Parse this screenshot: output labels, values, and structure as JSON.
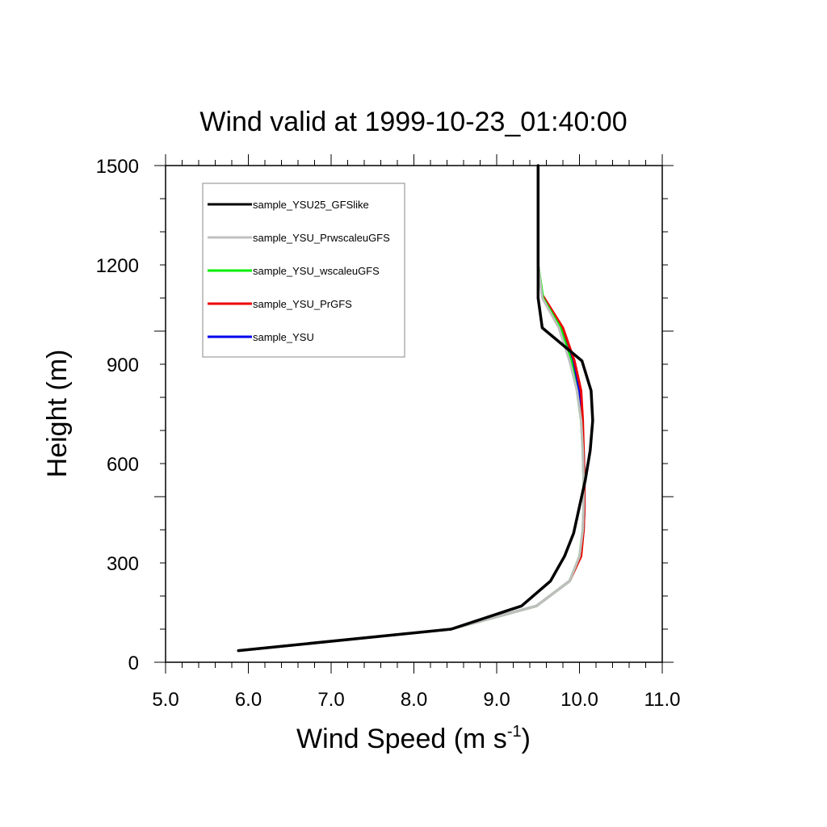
{
  "chart_data": {
    "type": "line",
    "title": "Wind valid at 1999-10-23_01:40:00",
    "xlabel_main": "Wind Speed (m s",
    "xlabel_sup": "-1",
    "xlabel_close": ")",
    "ylabel": "Height (m)",
    "xlim": [
      5.0,
      11.0
    ],
    "ylim": [
      0,
      1500
    ],
    "xticks": [
      5.0,
      6.0,
      7.0,
      8.0,
      9.0,
      10.0,
      11.0
    ],
    "xtick_labels": [
      "5.0",
      "6.0",
      "7.0",
      "8.0",
      "9.0",
      "10.0",
      "11.0"
    ],
    "yticks": [
      0,
      300,
      600,
      900,
      1200,
      1500
    ],
    "ytick_labels": [
      "0",
      "300",
      "600",
      "900",
      "1200",
      "1500"
    ],
    "grid": false,
    "legend_position": "top-left",
    "series": [
      {
        "name": "sample_YSU25_GFSlike",
        "color": "#000000",
        "x": [
          5.88,
          8.45,
          9.3,
          9.65,
          9.82,
          9.93,
          10.0,
          10.07,
          10.13,
          10.16,
          10.14,
          10.03,
          9.55,
          9.5,
          9.5,
          9.5,
          9.5
        ],
        "y": [
          35,
          100,
          170,
          245,
          320,
          390,
          470,
          550,
          640,
          730,
          820,
          910,
          1010,
          1100,
          1200,
          1350,
          1500
        ]
      },
      {
        "name": "sample_YSU_PrwscaleuGFS",
        "color": "#c0c0c0",
        "x": [
          5.88,
          8.45,
          9.48,
          9.88,
          10.0,
          10.04,
          10.05,
          10.05,
          10.04,
          10.02,
          9.97,
          9.88,
          9.75,
          9.55,
          9.5,
          9.5
        ],
        "y": [
          35,
          100,
          170,
          245,
          320,
          400,
          470,
          550,
          640,
          730,
          820,
          910,
          1010,
          1100,
          1200,
          1500
        ]
      },
      {
        "name": "sample_YSU_wscaleuGFS",
        "color": "#00ee00",
        "x": [
          5.88,
          8.45,
          9.48,
          9.88,
          10.0,
          10.04,
          10.05,
          10.05,
          10.04,
          10.02,
          9.97,
          9.9,
          9.77,
          9.56,
          9.5,
          9.5
        ],
        "y": [
          35,
          100,
          170,
          245,
          320,
          400,
          470,
          550,
          640,
          730,
          820,
          910,
          1010,
          1100,
          1200,
          1500
        ]
      },
      {
        "name": "sample_YSU_PrGFS",
        "color": "#ee0000",
        "x": [
          5.88,
          8.45,
          9.48,
          9.88,
          10.02,
          10.05,
          10.06,
          10.06,
          10.05,
          10.04,
          10.02,
          9.94,
          9.8,
          9.55,
          9.5,
          9.5
        ],
        "y": [
          35,
          100,
          170,
          245,
          320,
          400,
          470,
          550,
          640,
          730,
          820,
          910,
          1010,
          1110,
          1200,
          1500
        ]
      },
      {
        "name": "sample_YSU",
        "color": "#0000ee",
        "x": [
          5.88,
          8.45,
          9.48,
          9.88,
          10.01,
          10.05,
          10.06,
          10.06,
          10.05,
          10.03,
          10.0,
          9.92,
          9.78,
          9.55,
          9.5,
          9.5
        ],
        "y": [
          35,
          100,
          170,
          245,
          320,
          400,
          470,
          550,
          640,
          730,
          820,
          910,
          1010,
          1105,
          1200,
          1500
        ]
      }
    ]
  }
}
